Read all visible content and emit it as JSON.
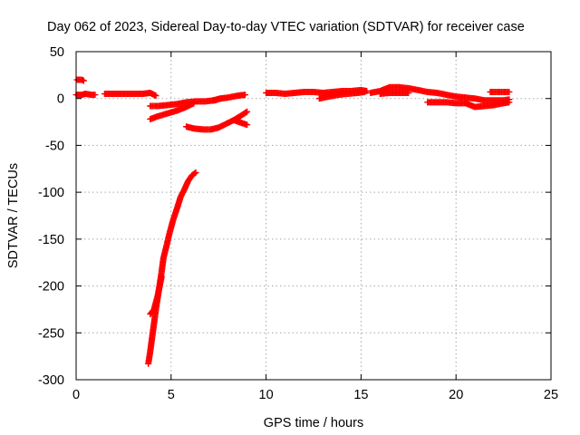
{
  "chart_data": {
    "type": "scatter",
    "title": "Day 062 of 2023, Sidereal Day-to-day VTEC variation (SDTVAR) for receiver case",
    "xlabel": "GPS time / hours",
    "ylabel": "SDTVAR / TECUs",
    "xlim": [
      0,
      25
    ],
    "ylim": [
      -300,
      50
    ],
    "xticks": [
      0,
      5,
      10,
      15,
      20,
      25
    ],
    "yticks": [
      50,
      0,
      -50,
      -100,
      -150,
      -200,
      -250,
      -300
    ],
    "grid": true,
    "marker": "+",
    "series": [
      {
        "name": "SDTVAR",
        "color": "#ff0000",
        "segments": [
          [
            [
              0.05,
              20
            ],
            [
              0.3,
              20
            ],
            [
              0.4,
              19
            ]
          ],
          [
            [
              0.0,
              4
            ],
            [
              0.3,
              4
            ],
            [
              0.5,
              5
            ],
            [
              0.8,
              4
            ],
            [
              1.0,
              4
            ]
          ],
          [
            [
              1.5,
              5
            ],
            [
              2.0,
              5
            ],
            [
              2.5,
              5
            ],
            [
              3.0,
              5
            ],
            [
              3.5,
              5
            ],
            [
              3.9,
              6
            ],
            [
              4.2,
              3
            ]
          ],
          [
            [
              3.9,
              -8
            ],
            [
              4.3,
              -8
            ],
            [
              4.8,
              -7
            ],
            [
              5.3,
              -6
            ],
            [
              5.8,
              -4
            ],
            [
              6.3,
              -3
            ],
            [
              6.8,
              -3
            ],
            [
              7.3,
              -2
            ],
            [
              7.6,
              0
            ]
          ],
          [
            [
              3.9,
              -22
            ],
            [
              4.3,
              -19
            ],
            [
              4.8,
              -16
            ],
            [
              5.3,
              -13
            ],
            [
              5.8,
              -9
            ],
            [
              6.2,
              -5
            ]
          ],
          [
            [
              7.2,
              -2
            ],
            [
              7.6,
              0
            ],
            [
              8.0,
              1
            ],
            [
              8.5,
              3
            ],
            [
              8.9,
              4
            ]
          ],
          [
            [
              5.8,
              -30
            ],
            [
              6.2,
              -32
            ],
            [
              6.7,
              -33
            ],
            [
              7.1,
              -33
            ],
            [
              7.5,
              -31
            ],
            [
              7.9,
              -27
            ],
            [
              8.3,
              -23
            ],
            [
              8.7,
              -18
            ],
            [
              9.0,
              -14
            ]
          ],
          [
            [
              8.3,
              -23
            ],
            [
              8.7,
              -26
            ],
            [
              9.0,
              -28
            ]
          ],
          [
            [
              3.8,
              -283
            ],
            [
              3.9,
              -270
            ],
            [
              4.0,
              -255
            ],
            [
              4.1,
              -240
            ],
            [
              4.2,
              -225
            ],
            [
              4.35,
              -205
            ],
            [
              4.5,
              -185
            ],
            [
              4.6,
              -170
            ],
            [
              4.75,
              -158
            ],
            [
              4.9,
              -145
            ],
            [
              5.1,
              -130
            ],
            [
              5.3,
              -118
            ],
            [
              5.5,
              -105
            ],
            [
              5.7,
              -97
            ],
            [
              5.9,
              -88
            ],
            [
              6.1,
              -82
            ],
            [
              6.3,
              -79
            ]
          ],
          [
            [
              3.9,
              -230
            ],
            [
              4.1,
              -225
            ],
            [
              4.3,
              -210
            ],
            [
              4.5,
              -190
            ]
          ],
          [
            [
              10.0,
              6
            ],
            [
              10.5,
              6
            ],
            [
              11.0,
              5
            ],
            [
              11.5,
              6
            ],
            [
              12.0,
              7
            ],
            [
              12.5,
              7
            ],
            [
              13.0,
              6
            ],
            [
              13.5,
              7
            ],
            [
              14.0,
              8
            ],
            [
              14.5,
              8
            ],
            [
              15.0,
              9
            ],
            [
              15.3,
              8
            ]
          ],
          [
            [
              12.8,
              0
            ],
            [
              13.3,
              2
            ],
            [
              13.8,
              4
            ],
            [
              14.3,
              5
            ],
            [
              14.8,
              6
            ],
            [
              15.2,
              7
            ]
          ],
          [
            [
              15.5,
              6
            ],
            [
              16.0,
              8
            ],
            [
              16.5,
              12
            ],
            [
              17.0,
              12
            ],
            [
              17.5,
              11
            ],
            [
              18.0,
              9
            ],
            [
              18.5,
              7
            ],
            [
              19.0,
              6
            ],
            [
              19.5,
              4
            ],
            [
              20.0,
              2
            ],
            [
              20.5,
              1
            ],
            [
              21.0,
              0
            ],
            [
              21.5,
              -2
            ],
            [
              22.0,
              -2
            ],
            [
              22.5,
              -2
            ],
            [
              22.8,
              -1
            ]
          ],
          [
            [
              16.0,
              5
            ],
            [
              16.5,
              6
            ],
            [
              17.0,
              6
            ],
            [
              17.5,
              6
            ]
          ],
          [
            [
              18.5,
              -4
            ],
            [
              19.0,
              -4
            ],
            [
              19.5,
              -4
            ],
            [
              20.0,
              -5
            ],
            [
              20.5,
              -5
            ],
            [
              21.0,
              -9
            ],
            [
              21.5,
              -8
            ],
            [
              22.0,
              -7
            ],
            [
              22.5,
              -5
            ],
            [
              22.8,
              -4
            ]
          ],
          [
            [
              21.8,
              7
            ],
            [
              22.2,
              7
            ],
            [
              22.6,
              7
            ],
            [
              22.8,
              7
            ]
          ]
        ]
      }
    ]
  }
}
